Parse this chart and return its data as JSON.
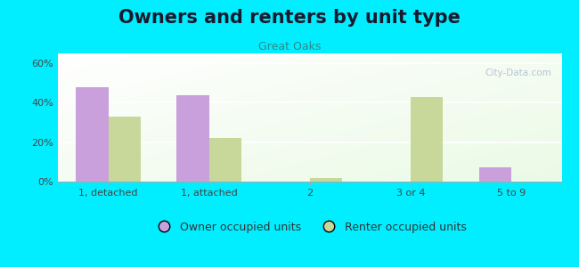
{
  "title": "Owners and renters by unit type",
  "subtitle": "Great Oaks",
  "categories": [
    "1, detached",
    "1, attached",
    "2",
    "3 or 4",
    "5 to 9"
  ],
  "owner_values": [
    48,
    44,
    0,
    0,
    7
  ],
  "renter_values": [
    33,
    22,
    2,
    43,
    0
  ],
  "owner_color": "#c9a0dc",
  "renter_color": "#c8d89a",
  "background_outer": "#00eeff",
  "ylim": [
    0,
    65
  ],
  "yticks": [
    0,
    20,
    40,
    60
  ],
  "ytick_labels": [
    "0%",
    "20%",
    "40%",
    "60%"
  ],
  "bar_width": 0.32,
  "legend_labels": [
    "Owner occupied units",
    "Renter occupied units"
  ],
  "title_fontsize": 15,
  "subtitle_fontsize": 9,
  "tick_fontsize": 8,
  "legend_fontsize": 9,
  "watermark": "City-Data.com"
}
